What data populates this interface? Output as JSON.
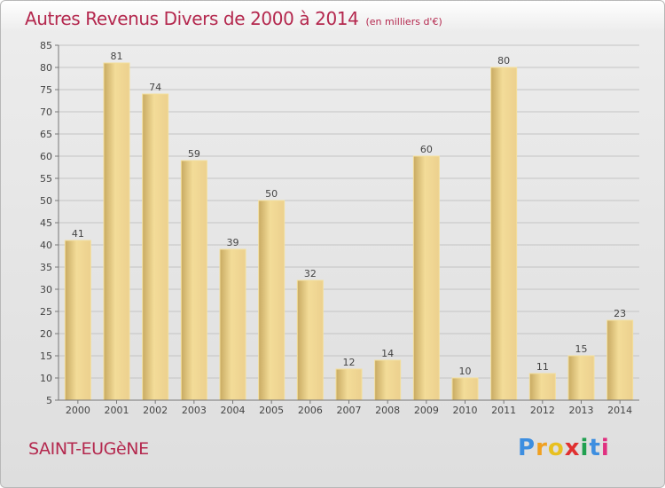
{
  "header": {
    "title": "Autres Revenus Divers de 2000 à 2014",
    "subtitle": "(en milliers d'€)"
  },
  "footer": {
    "town": "SAINT-EUGèNE",
    "logo_letters": [
      "P",
      "r",
      "o",
      "x",
      "i",
      "t",
      "i"
    ],
    "logo_colors": [
      "#3d8ee0",
      "#f0a020",
      "#e8c020",
      "#e03030",
      "#20a050",
      "#3d8ee0",
      "#e03080"
    ]
  },
  "chart_data": {
    "type": "bar",
    "categories": [
      "2000",
      "2001",
      "2002",
      "2003",
      "2004",
      "2005",
      "2006",
      "2007",
      "2008",
      "2009",
      "2010",
      "2011",
      "2012",
      "2013",
      "2014"
    ],
    "values": [
      41,
      81,
      74,
      59,
      39,
      50,
      32,
      12,
      14,
      60,
      10,
      80,
      11,
      15,
      23
    ],
    "title": "Autres Revenus Divers de 2000 à 2014",
    "subtitle": "(en milliers d'€)",
    "xlabel": "",
    "ylabel": "",
    "ylim": [
      5,
      85
    ],
    "yticks": [
      5,
      10,
      15,
      20,
      25,
      30,
      35,
      40,
      45,
      50,
      55,
      60,
      65,
      70,
      75,
      80,
      85
    ],
    "grid": true,
    "bar_color": "#e6ca84",
    "title_color": "#b4284e"
  }
}
